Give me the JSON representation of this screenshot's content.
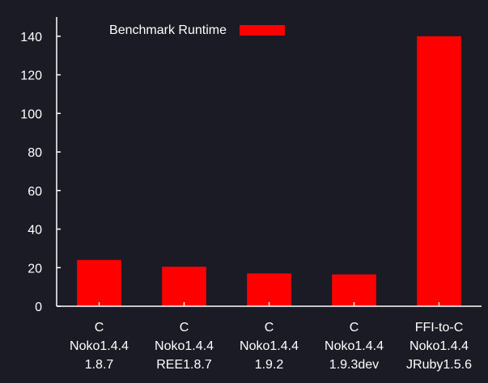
{
  "chart_data": {
    "type": "bar",
    "categories": [
      [
        "C",
        "Noko1.4.4",
        "1.8.7"
      ],
      [
        "C",
        "Noko1.4.4",
        "REE1.8.7"
      ],
      [
        "C",
        "Noko1.4.4",
        "1.9.2"
      ],
      [
        "C",
        "Noko1.4.4",
        "1.9.3dev"
      ],
      [
        "FFI-to-C",
        "Noko1.4.4",
        "JRuby1.5.6"
      ]
    ],
    "series": [
      {
        "name": "Benchmark Runtime",
        "values": [
          24,
          20.5,
          17,
          16.5,
          140
        ],
        "color": "#ff0000"
      }
    ],
    "ylim": [
      0,
      150
    ],
    "yticks": [
      0,
      20,
      40,
      60,
      80,
      100,
      120,
      140
    ],
    "title": "",
    "xlabel": "",
    "ylabel": "",
    "grid": false,
    "legend": "top-left",
    "colors": {
      "background": "#1b1b26",
      "axis": "#ffffff",
      "text": "#ffffff"
    }
  }
}
